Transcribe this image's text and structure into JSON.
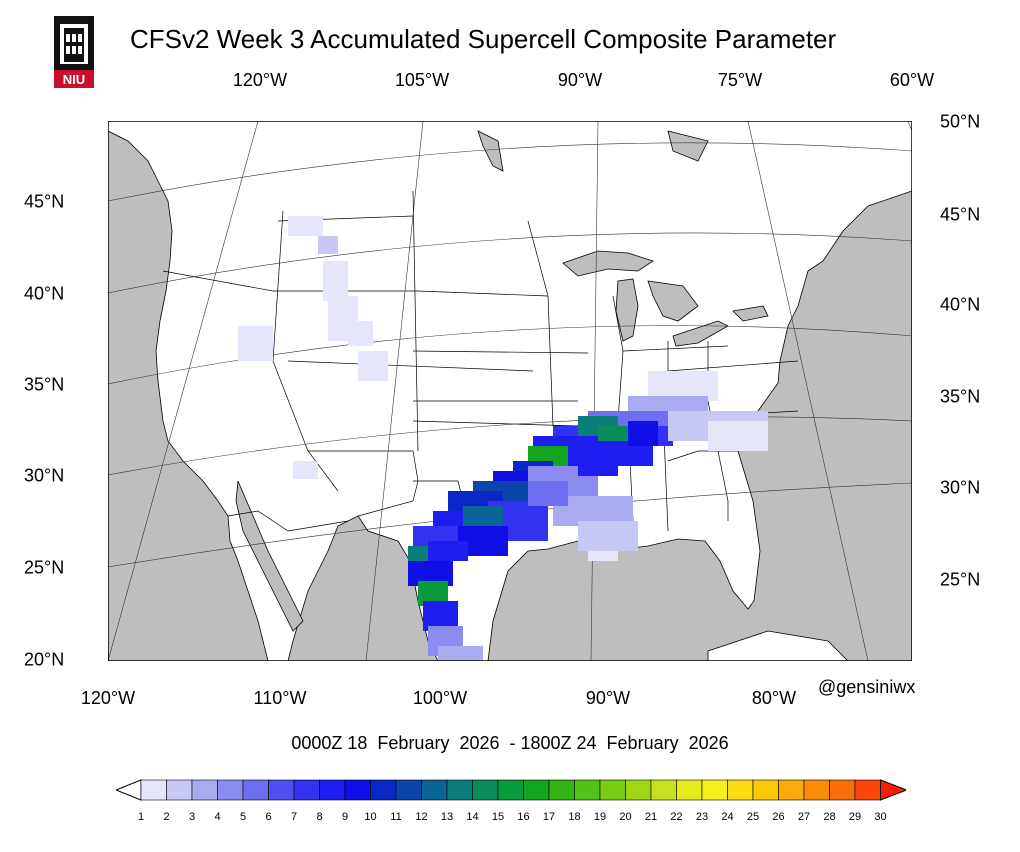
{
  "title": "CFSv2 Week 3 Accumulated Supercell Composite Parameter",
  "credit": "@gensiniwx",
  "date_range": "0000Z 18  February  2026  - 1800Z 24  February  2026",
  "logo_text": "NIU",
  "top_lon_labels": [
    "120°W",
    "105°W",
    "90°W",
    "75°W",
    "60°W"
  ],
  "bottom_lon_labels": [
    "120°W",
    "110°W",
    "100°W",
    "90°W",
    "80°W"
  ],
  "left_lat_labels": [
    "45°N",
    "40°N",
    "35°N",
    "30°N",
    "25°N",
    "20°N"
  ],
  "right_lat_labels": [
    "50°N",
    "45°N",
    "40°N",
    "35°N",
    "30°N",
    "25°N"
  ],
  "colorbar": {
    "ticks": [
      "1",
      "2",
      "3",
      "4",
      "5",
      "6",
      "7",
      "8",
      "9",
      "10",
      "11",
      "12",
      "13",
      "14",
      "15",
      "16",
      "17",
      "18",
      "19",
      "20",
      "21",
      "22",
      "23",
      "24",
      "25",
      "26",
      "27",
      "28",
      "29",
      "30"
    ],
    "colors": [
      "#e6e6fa",
      "#c8c8f5",
      "#aaaaf0",
      "#8c8cf0",
      "#6e6ef0",
      "#5050f0",
      "#3232f0",
      "#1e1ef0",
      "#0f0fe6",
      "#0a28c8",
      "#0a46aa",
      "#0a6496",
      "#0a7d78",
      "#0a8c5a",
      "#0a9b3c",
      "#14a51e",
      "#32b414",
      "#50c314",
      "#78cd14",
      "#a0d714",
      "#c8e11e",
      "#e6eb1e",
      "#f5f01e",
      "#fadc14",
      "#fac80a",
      "#faaa0a",
      "#fa8c0a",
      "#fa6e0a",
      "#fa460a",
      "#fa1e0a"
    ]
  },
  "map_colors": {
    "land": "#ffffff",
    "water": "#bebebe",
    "borders": "#000000"
  }
}
